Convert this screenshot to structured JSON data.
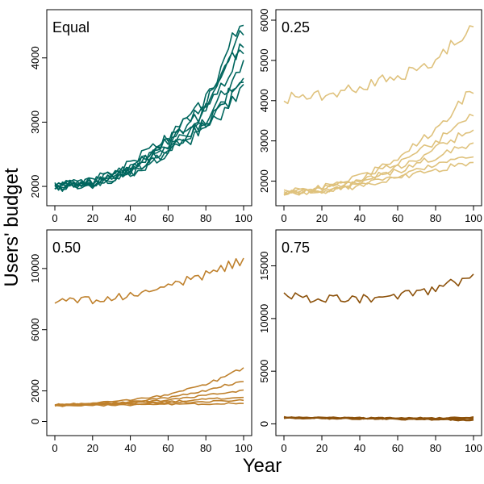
{
  "figure": {
    "ylabel": "Users' budget",
    "xlabel": "Year"
  },
  "chart_data": [
    {
      "type": "line",
      "label": "Equal",
      "color": "#00665e",
      "xlim": [
        0,
        100
      ],
      "ylim": [
        1800,
        4650
      ],
      "xticks": [
        0,
        20,
        40,
        60,
        80,
        100
      ],
      "yticks": [
        2000,
        3000,
        4000
      ],
      "series": [
        {
          "x": [
            0,
            20,
            40,
            60,
            80,
            100
          ],
          "y": [
            2000,
            2070,
            2300,
            2720,
            3300,
            4650
          ]
        },
        {
          "x": [
            0,
            20,
            40,
            60,
            80,
            100
          ],
          "y": [
            1980,
            2050,
            2250,
            2650,
            3150,
            4400
          ]
        },
        {
          "x": [
            0,
            20,
            40,
            60,
            80,
            100
          ],
          "y": [
            2020,
            2100,
            2350,
            2750,
            3350,
            4300
          ]
        },
        {
          "x": [
            0,
            20,
            40,
            60,
            80,
            100
          ],
          "y": [
            1990,
            2060,
            2280,
            2680,
            3200,
            4100
          ]
        },
        {
          "x": [
            0,
            20,
            40,
            60,
            80,
            100
          ],
          "y": [
            2010,
            2080,
            2260,
            2620,
            3050,
            3850
          ]
        },
        {
          "x": [
            0,
            20,
            40,
            60,
            80,
            100
          ],
          "y": [
            1970,
            2040,
            2240,
            2600,
            3000,
            3700
          ]
        },
        {
          "x": [
            0,
            20,
            40,
            60,
            80,
            100
          ],
          "y": [
            2000,
            2050,
            2220,
            2560,
            2950,
            3600
          ]
        },
        {
          "x": [
            0,
            20,
            40,
            60,
            80,
            100
          ],
          "y": [
            1990,
            2030,
            2200,
            2520,
            2900,
            3500
          ]
        }
      ]
    },
    {
      "type": "line",
      "label": "0.25",
      "color": "#dfc27d",
      "xlim": [
        0,
        100
      ],
      "ylim": [
        1550,
        6100
      ],
      "xticks": [
        0,
        20,
        40,
        60,
        80,
        100
      ],
      "yticks": [
        2000,
        3000,
        4000,
        5000,
        6000
      ],
      "series": [
        {
          "x": [
            0,
            20,
            40,
            60,
            80,
            100
          ],
          "y": [
            4050,
            4150,
            4300,
            4600,
            5000,
            5850
          ]
        },
        {
          "x": [
            0,
            20,
            40,
            60,
            80,
            100
          ],
          "y": [
            1750,
            1850,
            2100,
            2550,
            3300,
            4300
          ]
        },
        {
          "x": [
            0,
            20,
            40,
            60,
            80,
            100
          ],
          "y": [
            1700,
            1820,
            2050,
            2450,
            3000,
            3600
          ]
        },
        {
          "x": [
            0,
            20,
            40,
            60,
            80,
            100
          ],
          "y": [
            1730,
            1800,
            2000,
            2350,
            2800,
            3300
          ]
        },
        {
          "x": [
            0,
            20,
            40,
            60,
            80,
            100
          ],
          "y": [
            1700,
            1780,
            1950,
            2250,
            2600,
            2950
          ]
        },
        {
          "x": [
            0,
            20,
            40,
            60,
            80,
            100
          ],
          "y": [
            1720,
            1760,
            1900,
            2150,
            2400,
            2650
          ]
        },
        {
          "x": [
            0,
            20,
            40,
            60,
            80,
            100
          ],
          "y": [
            1690,
            1740,
            1870,
            2100,
            2300,
            2450
          ]
        }
      ]
    },
    {
      "type": "line",
      "label": "0.50",
      "color": "#bf812d",
      "xlim": [
        0,
        100
      ],
      "ylim": [
        -500,
        12100
      ],
      "xticks": [
        0,
        20,
        40,
        60,
        80,
        100
      ],
      "yticks": [
        0,
        2000,
        6000,
        10000
      ],
      "series": [
        {
          "x": [
            0,
            20,
            40,
            60,
            80,
            100
          ],
          "y": [
            8000,
            7900,
            8200,
            8800,
            9600,
            10500
          ]
        },
        {
          "x": [
            0,
            20,
            40,
            60,
            80,
            100
          ],
          "y": [
            1100,
            1200,
            1400,
            1750,
            2400,
            3500
          ]
        },
        {
          "x": [
            0,
            20,
            40,
            60,
            80,
            100
          ],
          "y": [
            1050,
            1150,
            1300,
            1550,
            2000,
            2700
          ]
        },
        {
          "x": [
            0,
            20,
            40,
            60,
            80,
            100
          ],
          "y": [
            1100,
            1150,
            1250,
            1400,
            1700,
            2050
          ]
        },
        {
          "x": [
            0,
            20,
            40,
            60,
            80,
            100
          ],
          "y": [
            1080,
            1120,
            1200,
            1300,
            1450,
            1600
          ]
        },
        {
          "x": [
            0,
            20,
            40,
            60,
            80,
            100
          ],
          "y": [
            1050,
            1100,
            1150,
            1220,
            1300,
            1400
          ]
        },
        {
          "x": [
            0,
            20,
            40,
            60,
            80,
            100
          ],
          "y": [
            1000,
            1050,
            1080,
            1120,
            1150,
            1200
          ]
        }
      ]
    },
    {
      "type": "line",
      "label": "0.75",
      "color": "#8c510a",
      "xlim": [
        0,
        100
      ],
      "ylim": [
        -500,
        17800
      ],
      "xticks": [
        0,
        20,
        40,
        60,
        80,
        100
      ],
      "yticks": [
        0,
        5000,
        10000,
        15000
      ],
      "series": [
        {
          "x": [
            0,
            20,
            40,
            60,
            80,
            100
          ],
          "y": [
            12200,
            11800,
            11900,
            12100,
            12800,
            14000
          ]
        },
        {
          "x": [
            0,
            20,
            40,
            60,
            80,
            100
          ],
          "y": [
            620,
            600,
            580,
            560,
            560,
            640
          ]
        },
        {
          "x": [
            0,
            20,
            40,
            60,
            80,
            100
          ],
          "y": [
            600,
            580,
            560,
            540,
            520,
            560
          ]
        },
        {
          "x": [
            0,
            20,
            40,
            60,
            80,
            100
          ],
          "y": [
            610,
            570,
            540,
            510,
            480,
            500
          ]
        },
        {
          "x": [
            0,
            20,
            40,
            60,
            80,
            100
          ],
          "y": [
            580,
            550,
            520,
            490,
            450,
            430
          ]
        },
        {
          "x": [
            0,
            20,
            40,
            60,
            80,
            100
          ],
          "y": [
            590,
            540,
            500,
            460,
            420,
            380
          ]
        },
        {
          "x": [
            0,
            20,
            40,
            60,
            80,
            100
          ],
          "y": [
            570,
            530,
            480,
            440,
            400,
            350
          ]
        }
      ]
    }
  ]
}
